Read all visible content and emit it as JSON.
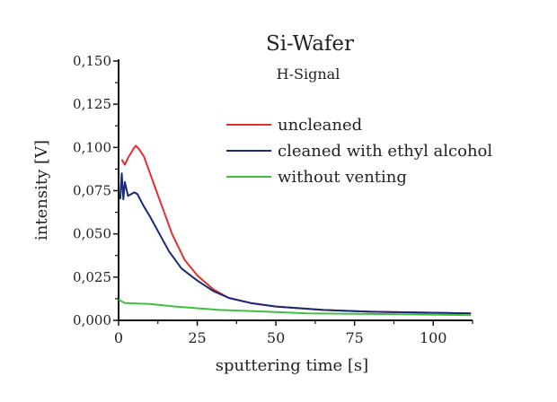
{
  "chart_data": {
    "type": "line",
    "title": "Si-Wafer",
    "subtitle": "H-Signal",
    "xlabel": "sputtering time [s]",
    "ylabel": "intensity [V]",
    "xlim": [
      0,
      112.5
    ],
    "ylim": [
      0,
      0.15
    ],
    "xticks": [
      0,
      25,
      50,
      75,
      100
    ],
    "xtick_labels": [
      "0",
      "25",
      "50",
      "75",
      "100"
    ],
    "yticks": [
      0,
      0.025,
      0.05,
      0.075,
      0.1,
      0.125,
      0.15
    ],
    "ytick_labels": [
      "0,000",
      "0,025",
      "0,050",
      "0,075",
      "0,100",
      "0,125",
      "0,150"
    ],
    "grid": false,
    "legend_position": "top-right",
    "series": [
      {
        "name": "uncleaned",
        "color": "#e03030",
        "x": [
          1,
          2,
          3,
          4,
          5,
          5.5,
          6.5,
          8,
          10,
          12,
          14,
          17,
          21,
          25,
          30,
          35,
          42,
          50,
          65,
          80,
          95,
          112
        ],
        "y": [
          0.093,
          0.09,
          0.094,
          0.097,
          0.1,
          0.101,
          0.099,
          0.095,
          0.085,
          0.075,
          0.065,
          0.05,
          0.035,
          0.026,
          0.018,
          0.013,
          0.01,
          0.008,
          0.006,
          0.005,
          0.0045,
          0.004
        ]
      },
      {
        "name": "cleaned with ethyl alcohol",
        "color": "#1a2a78",
        "x": [
          0.5,
          1,
          1.5,
          2,
          3,
          4,
          5,
          6,
          8,
          10,
          13,
          16,
          20,
          25,
          30,
          35,
          42,
          50,
          65,
          80,
          95,
          112
        ],
        "y": [
          0.07,
          0.085,
          0.07,
          0.08,
          0.072,
          0.073,
          0.074,
          0.073,
          0.066,
          0.06,
          0.05,
          0.04,
          0.03,
          0.023,
          0.017,
          0.013,
          0.01,
          0.008,
          0.006,
          0.005,
          0.0045,
          0.004
        ]
      },
      {
        "name": "without venting",
        "color": "#40c040",
        "x": [
          0,
          1,
          2,
          5,
          10,
          18,
          25,
          32,
          40,
          50,
          60,
          75,
          90,
          112
        ],
        "y": [
          0.012,
          0.011,
          0.01,
          0.0098,
          0.0095,
          0.008,
          0.007,
          0.006,
          0.0055,
          0.0048,
          0.004,
          0.0038,
          0.0035,
          0.003
        ]
      }
    ]
  }
}
